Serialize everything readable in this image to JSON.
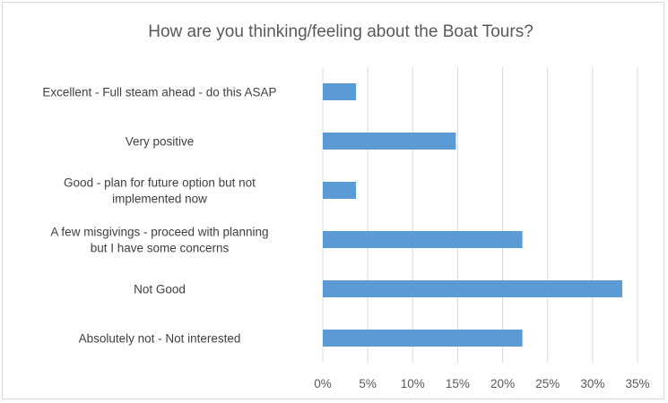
{
  "chart_data": {
    "type": "bar",
    "orientation": "horizontal",
    "title": "How are you thinking/feeling about the Boat Tours?",
    "categories": [
      [
        "Excellent - Full steam ahead - do this ASAP"
      ],
      [
        "Very positive"
      ],
      [
        "Good - plan for future option but not",
        "implemented now"
      ],
      [
        "A few misgivings - proceed with planning",
        "but I have some concerns"
      ],
      [
        "Not Good"
      ],
      [
        "Absolutely not - Not interested"
      ]
    ],
    "values": [
      0.037,
      0.148,
      0.037,
      0.222,
      0.333,
      0.222
    ],
    "xlim": [
      0,
      0.35
    ],
    "x_ticks": [
      "0%",
      "5%",
      "10%",
      "15%",
      "20%",
      "25%",
      "30%",
      "35%"
    ],
    "gridlines": true,
    "legend": false,
    "bar_color": "#5b9bd5",
    "grid_color": "#d9d9d9"
  }
}
